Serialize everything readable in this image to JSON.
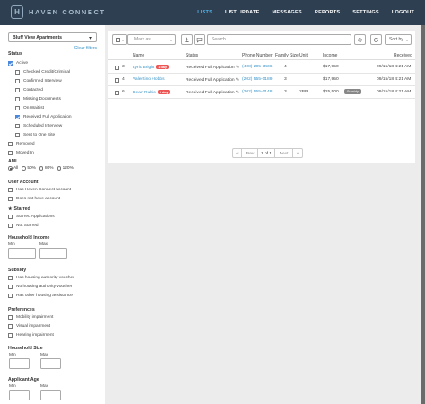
{
  "nav": {
    "brand": "HAVEN CONNECT",
    "logo_letter": "H",
    "items": [
      {
        "label": "LISTS",
        "active": true
      },
      {
        "label": "LIST UPDATE",
        "active": false
      },
      {
        "label": "MESSAGES",
        "active": false
      },
      {
        "label": "REPORTS",
        "active": false
      },
      {
        "label": "SETTINGS",
        "active": false
      },
      {
        "label": "LOGOUT",
        "active": false
      }
    ]
  },
  "sidebar": {
    "property": "Bluff View Apartments",
    "clear_filters": "Clear filters",
    "status": {
      "title": "Status",
      "active": {
        "label": "Active",
        "checked": true
      },
      "sub": [
        {
          "label": "Checked Credit/Criminal",
          "checked": false
        },
        {
          "label": "Confirmed Interview",
          "checked": false
        },
        {
          "label": "Contacted",
          "checked": false
        },
        {
          "label": "Missing Documents",
          "checked": false
        },
        {
          "label": "On Waitlist",
          "checked": false
        },
        {
          "label": "Received Full Application",
          "checked": true
        },
        {
          "label": "Scheduled Interview",
          "checked": false
        },
        {
          "label": "Sent to One Site",
          "checked": false
        }
      ],
      "other": [
        {
          "label": "Removed",
          "checked": false
        },
        {
          "label": "Moved In",
          "checked": false
        }
      ]
    },
    "ami": {
      "title": "AMI",
      "options": [
        {
          "label": "All",
          "on": true
        },
        {
          "label": "50%",
          "on": false
        },
        {
          "label": "80%",
          "on": false
        },
        {
          "label": "120%",
          "on": false
        }
      ]
    },
    "user_account": {
      "title": "User Account",
      "items": [
        "Has Haven Connect account",
        "Does not have account"
      ]
    },
    "starred": {
      "title": "Starred",
      "items": [
        "Starred Applications",
        "Not Starred"
      ]
    },
    "household_income": {
      "title": "Household Income",
      "min": "Min",
      "max": "Max"
    },
    "subsidy": {
      "title": "Subsidy",
      "items": [
        "Has housing authority voucher",
        "No housing authority voucher",
        "Has other housing assistance"
      ]
    },
    "preferences": {
      "title": "Preferences",
      "items": [
        "Mobility impairment",
        "Visual impairment",
        "Hearing impairment"
      ]
    },
    "household_size": {
      "title": "Household Size",
      "min": "Min",
      "max": "Max"
    },
    "applicant_age": {
      "title": "Applicant Age",
      "min": "Min",
      "max": "Max"
    }
  },
  "toolbar": {
    "mark_as": "Mark as...",
    "search_placeholder": "Search",
    "sort_by": "Sort by"
  },
  "table": {
    "headers": {
      "name": "Name",
      "status": "Status",
      "phone": "Phone Number",
      "family_size": "Family Size",
      "unit": "Unit",
      "income": "Income",
      "received": "Received"
    },
    "rows": [
      {
        "num": "3",
        "name": "Lyric Bright",
        "new_badge": "1 day",
        "status": "Received Full Application",
        "phone": "(408) 205-3436",
        "family_size": "4",
        "unit": "",
        "income": "$17,950",
        "subsidy": "",
        "received": "09/15/18 4:21 AM"
      },
      {
        "num": "4",
        "name": "Valentino Hobbs",
        "new_badge": "",
        "status": "Received Full Application",
        "phone": "(202) 555-0189",
        "family_size": "3",
        "unit": "",
        "income": "$17,950",
        "subsidy": "",
        "received": "09/15/18 4:21 AM"
      },
      {
        "num": "6",
        "name": "Dean Rubio",
        "new_badge": "1 day",
        "status": "Received Full Application",
        "phone": "(202) 555-0148",
        "family_size": "3",
        "unit": "2BR",
        "income": "$25,500",
        "subsidy": "Subsidy",
        "received": "09/15/18 4:21 AM"
      }
    ]
  },
  "pager": {
    "prev_double": "«",
    "prev": "Prev",
    "current": "1 of 1",
    "next": "Next",
    "next_double": "»"
  }
}
